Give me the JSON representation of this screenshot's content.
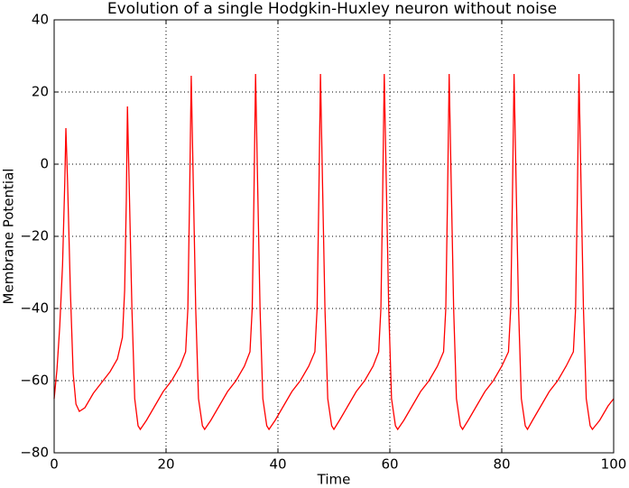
{
  "chart_data": {
    "type": "line",
    "title": "Evolution of a single Hodgkin-Huxley neuron without noise",
    "xlabel": "Time",
    "ylabel": "Membrane Potential",
    "xlim": [
      0,
      100
    ],
    "xticks": [
      0,
      20,
      40,
      60,
      80,
      100
    ],
    "ylim": [
      -80,
      40
    ],
    "yticks": [
      {
        "value": -80,
        "label": "−80"
      },
      {
        "value": -60,
        "label": "−60"
      },
      {
        "value": -40,
        "label": "−40"
      },
      {
        "value": -20,
        "label": "−20"
      },
      0,
      20,
      40
    ],
    "grid": true,
    "series": [
      {
        "color": "#ff0000",
        "x": [
          0,
          0.5,
          1,
          1.5,
          1.9,
          2.1,
          2.4,
          2.9,
          3.4,
          3.9,
          4.5,
          5.5,
          7,
          8.5,
          10,
          11.3,
          12.2,
          12.6,
          12.9,
          13.1,
          13.4,
          13.9,
          14.4,
          15.0,
          15.4,
          16.5,
          18,
          19.5,
          21,
          22.5,
          23.5,
          23.9,
          24.2,
          24.5,
          24.8,
          25.3,
          25.8,
          26.5,
          26.9,
          28,
          29.5,
          31,
          32.5,
          34,
          35,
          35.4,
          35.7,
          36.0,
          36.3,
          36.8,
          37.3,
          38,
          38.4,
          39.5,
          41,
          42.5,
          44,
          45.5,
          46.6,
          47,
          47.3,
          47.6,
          47.9,
          48.4,
          48.9,
          49.6,
          50,
          51,
          52.5,
          54,
          55.5,
          57,
          58,
          58.4,
          58.7,
          59.0,
          59.3,
          59.8,
          60.3,
          61,
          61.4,
          62.5,
          64,
          65.5,
          67,
          68.5,
          69.6,
          70,
          70.3,
          70.6,
          70.9,
          71.4,
          71.9,
          72.6,
          73,
          74,
          75.5,
          77,
          78.5,
          80,
          81.2,
          81.6,
          81.9,
          82.2,
          82.5,
          83,
          83.5,
          84.2,
          84.6,
          85.5,
          87,
          88.5,
          90,
          91.5,
          92.8,
          93.2,
          93.5,
          93.8,
          94.1,
          94.6,
          95.1,
          95.8,
          96.2,
          97.5,
          99,
          100
        ],
        "values": [
          -65,
          -57,
          -45,
          -28,
          -5,
          10,
          -5,
          -35,
          -58,
          -66.5,
          -68.5,
          -67.5,
          -63.5,
          -60.5,
          -57.5,
          -54,
          -48,
          -35,
          -10,
          16,
          -5,
          -40,
          -65,
          -72.5,
          -73.5,
          -71,
          -67,
          -63,
          -60,
          -56,
          -52,
          -40,
          -10,
          24.5,
          0,
          -40,
          -65,
          -72.5,
          -73.5,
          -71,
          -67,
          -63,
          -60,
          -56,
          -52,
          -40,
          -10,
          25,
          0,
          -40,
          -65,
          -72.5,
          -73.5,
          -71,
          -67,
          -63,
          -60,
          -56,
          -52,
          -40,
          -10,
          25,
          0,
          -40,
          -65,
          -72.5,
          -73.5,
          -71,
          -67,
          -63,
          -60,
          -56,
          -52,
          -40,
          -10,
          25,
          0,
          -40,
          -65,
          -72.5,
          -73.5,
          -71,
          -67,
          -63,
          -60,
          -56,
          -52,
          -40,
          -10,
          25,
          0,
          -40,
          -65,
          -72.5,
          -73.5,
          -71,
          -67,
          -63,
          -60,
          -56,
          -52,
          -40,
          -10,
          25,
          0,
          -40,
          -65,
          -72.5,
          -73.5,
          -71,
          -67,
          -63,
          -60,
          -56,
          -52,
          -40,
          -10,
          25,
          0,
          -40,
          -65,
          -72.5,
          -73.5,
          -71,
          -67,
          -65
        ]
      }
    ]
  }
}
